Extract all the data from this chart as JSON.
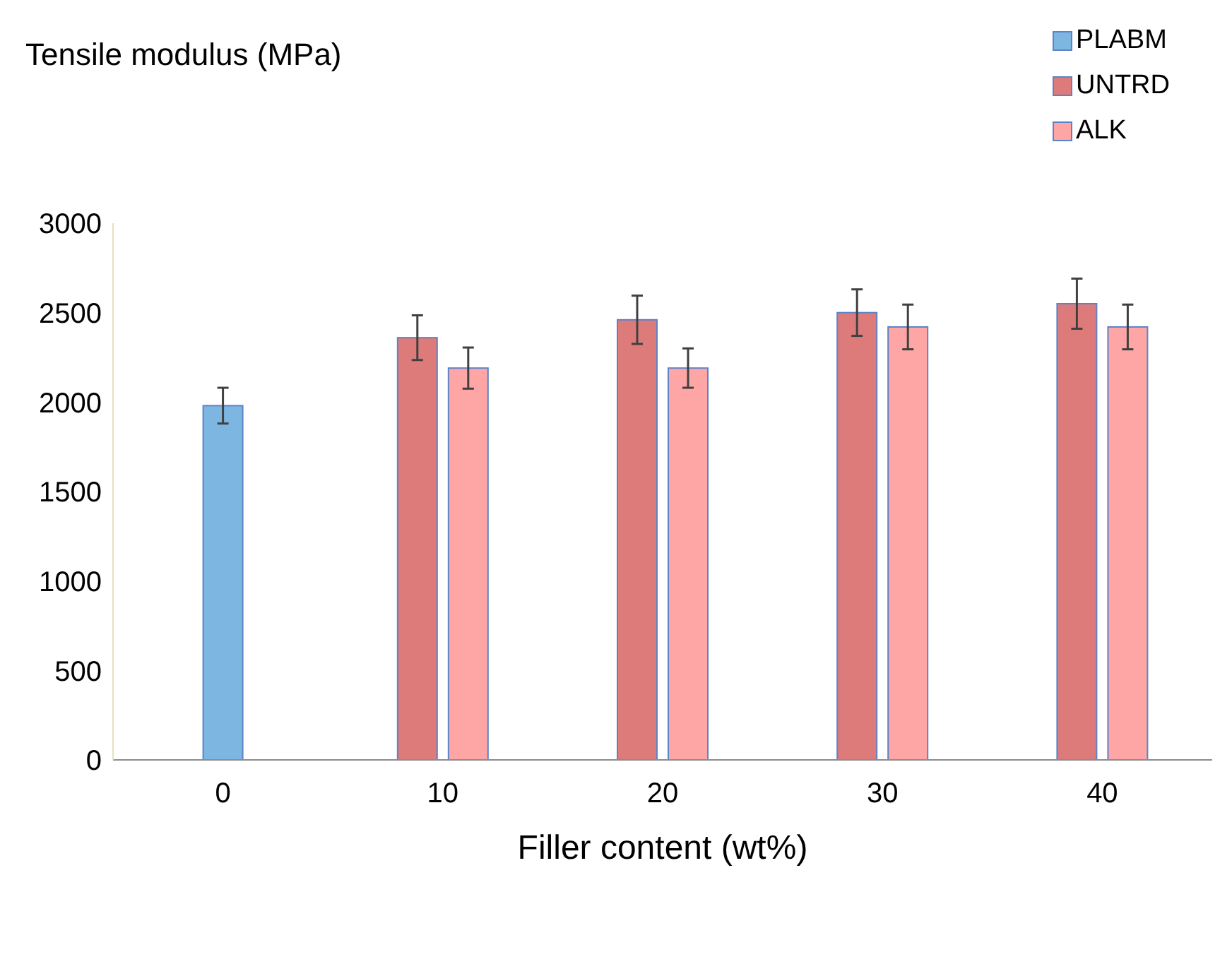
{
  "chart_data": {
    "type": "bar",
    "ylabel": "Tensile modulus (MPa)",
    "xlabel": "Filler content (wt%)",
    "categories": [
      "0",
      "10",
      "20",
      "30",
      "40"
    ],
    "series": [
      {
        "name": "PLABM",
        "color": "#7eb6e2",
        "values": [
          1980,
          null,
          null,
          null,
          null
        ],
        "errors": [
          100,
          null,
          null,
          null,
          null
        ]
      },
      {
        "name": "UNTRD",
        "color": "#dd7b7b",
        "values": [
          null,
          2360,
          2460,
          2500,
          2550
        ],
        "errors": [
          null,
          125,
          135,
          130,
          140
        ]
      },
      {
        "name": "ALK",
        "color": "#fea5a5",
        "values": [
          null,
          2190,
          2190,
          2420,
          2420
        ],
        "errors": [
          null,
          115,
          110,
          125,
          125
        ]
      }
    ],
    "ylim": [
      0,
      3000
    ],
    "yticks": [
      0,
      500,
      1000,
      1500,
      2000,
      2500,
      3000
    ],
    "grid": false,
    "legend": "top right"
  }
}
